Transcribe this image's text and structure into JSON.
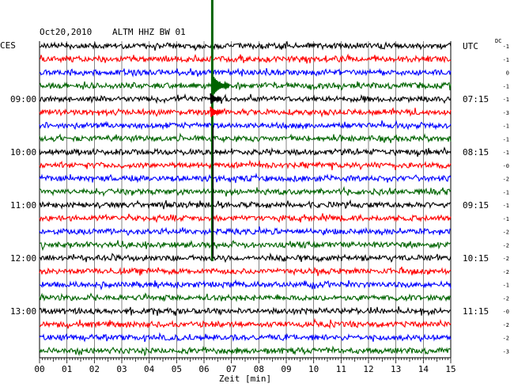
{
  "header": {
    "date": "Oct20,2010",
    "station": "ALTM HHZ BW 01"
  },
  "timezones": {
    "left": "CES",
    "right": "UTC",
    "dc_label": "DC"
  },
  "chart_data": {
    "type": "helicorder",
    "xlabel": "Zeit [min]",
    "xlim": [
      0,
      15
    ],
    "x_ticks": [
      "00",
      "01",
      "02",
      "03",
      "04",
      "05",
      "06",
      "07",
      "08",
      "09",
      "10",
      "11",
      "12",
      "13",
      "14",
      "15"
    ],
    "trace_colors": [
      "#000000",
      "#ff0000",
      "#0000ff",
      "#006400"
    ],
    "left_hour_labels": [
      {
        "row": 4,
        "label": "09:00"
      },
      {
        "row": 8,
        "label": "10:00"
      },
      {
        "row": 12,
        "label": "11:00"
      },
      {
        "row": 16,
        "label": "12:00"
      },
      {
        "row": 20,
        "label": "13:00"
      }
    ],
    "right_hour_labels": [
      {
        "row": 0,
        "label": "UTC"
      },
      {
        "row": 4,
        "label": "07:15"
      },
      {
        "row": 8,
        "label": "08:15"
      },
      {
        "row": 12,
        "label": "09:15"
      },
      {
        "row": 16,
        "label": "10:15"
      },
      {
        "row": 20,
        "label": "11:15"
      }
    ],
    "dc_offsets": [
      "-1",
      "-1",
      "0",
      "-1",
      "-1",
      "-3",
      "-1",
      "-1",
      "-1",
      "-0",
      "-2",
      "-1",
      "-1",
      "-1",
      "-2",
      "-2",
      "-2",
      "-2",
      "-1",
      "-2",
      "-0",
      "-2",
      "-2",
      "-3"
    ],
    "event": {
      "minute": 6.3,
      "start_row": 0,
      "end_row": 16
    }
  }
}
